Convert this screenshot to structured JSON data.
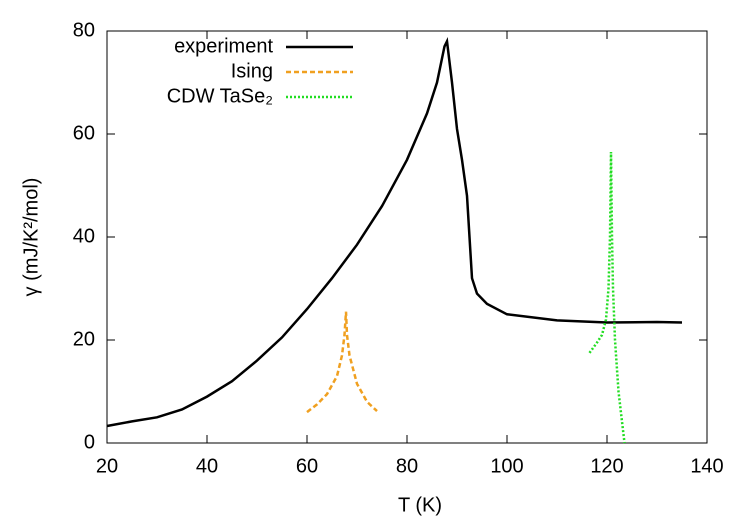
{
  "chart_data": {
    "type": "line",
    "xlabel": "T (K)",
    "ylabel": "γ (mJ/K²/mol)",
    "xlim": [
      20,
      140
    ],
    "xticks": [
      20,
      40,
      60,
      80,
      100,
      120,
      140
    ],
    "ylim": [
      0,
      80
    ],
    "yticks": [
      0,
      20,
      40,
      60,
      80
    ],
    "legend": "top-left",
    "series": [
      {
        "name": "experiment",
        "color": "#000000",
        "dash": "solid",
        "x": [
          20,
          25,
          30,
          35,
          40,
          45,
          50,
          55,
          60,
          65,
          70,
          75,
          80,
          84,
          86,
          87.5,
          88,
          89,
          90,
          91,
          92,
          92.5,
          93,
          94,
          96,
          100,
          110,
          120,
          130,
          135
        ],
        "values": [
          3.3,
          4.2,
          5,
          6.5,
          9,
          12,
          16,
          20.5,
          26,
          32,
          38.5,
          46,
          55,
          64,
          70,
          77,
          78,
          70,
          61,
          55,
          48,
          40,
          32,
          29,
          27,
          25,
          23.8,
          23.4,
          23.5,
          23.4
        ]
      },
      {
        "name": "Ising",
        "color": "#f0a020",
        "dash": "dashed",
        "x": [
          60,
          62,
          64,
          66,
          67,
          67.5,
          67.8,
          68,
          68.5,
          70,
          72,
          74
        ],
        "values": [
          6,
          7.5,
          9.5,
          13,
          17,
          21,
          25.5,
          21,
          17,
          11.5,
          8,
          6.2
        ]
      },
      {
        "name": "CDW TaSe₂",
        "color": "#22dd22",
        "dash": "dotted",
        "x": [
          116.5,
          118,
          119,
          119.8,
          120.3,
          120.6,
          120.8,
          121,
          121.2,
          121.6,
          122.3,
          123.5
        ],
        "values": [
          17.5,
          19.5,
          21,
          24,
          30,
          40,
          56.5,
          40,
          30,
          20,
          10,
          0
        ]
      }
    ]
  }
}
